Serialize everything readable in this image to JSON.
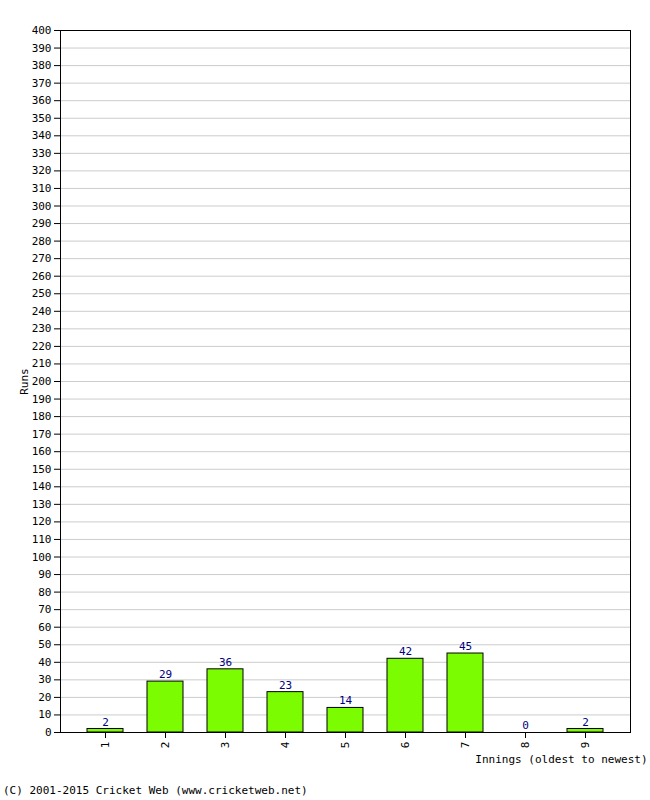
{
  "chart_data": {
    "type": "bar",
    "caption": "(C) 2001-2015 Cricket Web (www.cricketweb.net)",
    "x_label": "Innings (oldest to newest)",
    "y_label": "Runs",
    "categories": [
      "1",
      "2",
      "3",
      "4",
      "5",
      "6",
      "7",
      "8",
      "9"
    ],
    "values": [
      2,
      29,
      36,
      23,
      14,
      42,
      45,
      0,
      2
    ],
    "color": "#7cfc00",
    "ylim": [
      0,
      400
    ],
    "yticks": [
      0,
      10,
      20,
      30,
      40,
      50,
      60,
      70,
      80,
      90,
      100,
      110,
      120,
      130,
      140,
      150,
      160,
      170,
      180,
      190,
      200,
      210,
      220,
      230,
      240,
      250,
      260,
      270,
      280,
      290,
      300,
      310,
      320,
      330,
      340,
      350,
      360,
      370,
      380,
      390,
      400
    ],
    "grid": true,
    "data_labels": true
  }
}
